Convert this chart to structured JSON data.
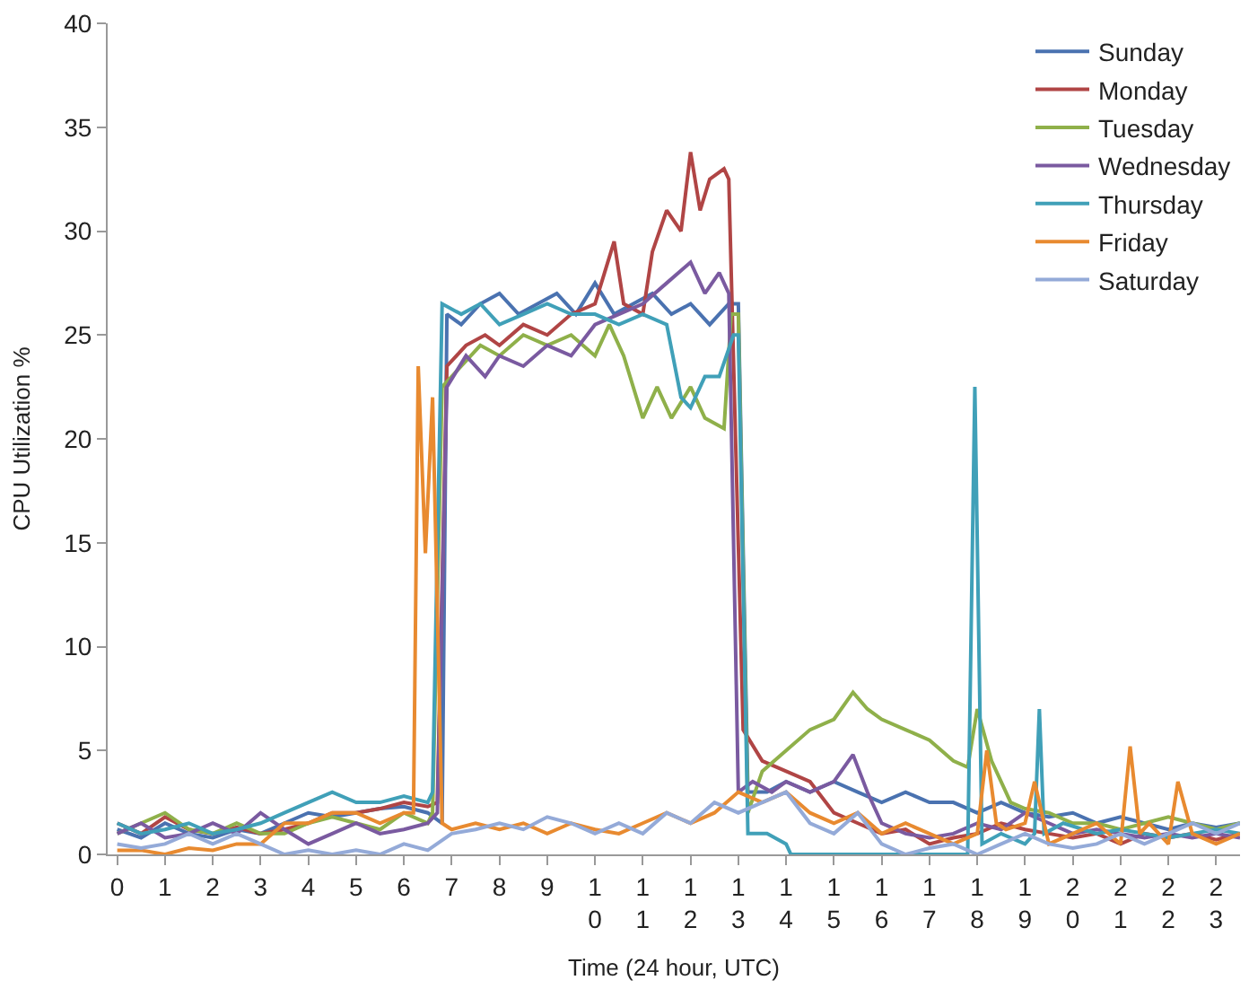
{
  "chart_data": {
    "type": "line",
    "xlabel": "Time (24 hour, UTC)",
    "ylabel": "CPU Utilization %",
    "xlim": [
      -0.2,
      23.5
    ],
    "ylim": [
      0,
      40
    ],
    "xticks": [
      0,
      1,
      2,
      3,
      4,
      5,
      6,
      7,
      8,
      9,
      10,
      11,
      12,
      13,
      14,
      15,
      16,
      17,
      18,
      19,
      20,
      21,
      22,
      23
    ],
    "yticks": [
      0,
      5,
      10,
      15,
      20,
      25,
      30,
      35,
      40
    ],
    "legend": "top right",
    "marker": "none",
    "line_style": "solid",
    "series": [
      {
        "name": "Sunday",
        "color": "#4a72b0",
        "x": [
          0,
          0.5,
          1,
          1.5,
          2,
          2.5,
          3,
          3.5,
          4,
          4.5,
          5,
          5.5,
          6,
          6.5,
          6.8,
          6.9,
          7.2,
          7.6,
          8,
          8.4,
          8.8,
          9.2,
          9.6,
          10,
          10.4,
          10.8,
          11.2,
          11.6,
          12,
          12.4,
          12.8,
          13.0,
          13.2,
          13.6,
          14,
          14.5,
          15,
          15.5,
          16,
          16.5,
          17,
          17.5,
          18,
          18.5,
          19,
          19.5,
          20,
          20.5,
          21,
          21.5,
          22,
          22.5,
          23,
          23.5
        ],
        "values": [
          1.2,
          0.8,
          1.5,
          1,
          0.8,
          1.2,
          1,
          1.5,
          2,
          1.8,
          2,
          2.2,
          2.3,
          2,
          1.5,
          26,
          25.5,
          26.5,
          27,
          26,
          26.5,
          27,
          26,
          27.5,
          26,
          26.5,
          27,
          26,
          26.5,
          25.5,
          26.5,
          26.5,
          3,
          3,
          3.5,
          3,
          3.5,
          3,
          2.5,
          3,
          2.5,
          2.5,
          2,
          2.5,
          2,
          1.8,
          2,
          1.5,
          1.8,
          1.5,
          1.2,
          1.5,
          1.3,
          1.5
        ]
      },
      {
        "name": "Monday",
        "color": "#b04545",
        "x": [
          0,
          0.5,
          1,
          1.5,
          2,
          2.5,
          3,
          3.5,
          4,
          4.5,
          5,
          5.5,
          6,
          6.5,
          6.7,
          6.9,
          7.3,
          7.7,
          8,
          8.5,
          9,
          9.5,
          10,
          10.2,
          10.4,
          10.6,
          11,
          11.2,
          11.5,
          11.8,
          12,
          12.2,
          12.4,
          12.7,
          12.8,
          13.1,
          13.5,
          14,
          14.5,
          15,
          15.5,
          16,
          16.5,
          17,
          17.5,
          18,
          18.5,
          19,
          19.5,
          20,
          20.5,
          21,
          21.5,
          22,
          22.5,
          23,
          23.5
        ],
        "values": [
          1.5,
          1,
          1.8,
          1.2,
          1,
          1.3,
          1,
          1.2,
          1.5,
          2,
          2,
          2.2,
          2.5,
          2.3,
          2.5,
          23.5,
          24.5,
          25,
          24.5,
          25.5,
          25,
          26,
          26.5,
          28,
          29.5,
          26.5,
          26,
          29,
          31,
          30,
          33.8,
          31,
          32.5,
          33,
          32.5,
          6,
          4.5,
          4,
          3.5,
          2,
          1.5,
          1,
          1.2,
          0.5,
          0.8,
          1,
          1.5,
          1.2,
          1,
          0.8,
          1,
          0.5,
          1,
          0.8,
          1,
          0.7,
          1
        ]
      },
      {
        "name": "Tuesday",
        "color": "#8fb04a",
        "x": [
          0,
          0.5,
          1,
          1.5,
          2,
          2.5,
          3,
          3.5,
          4,
          4.5,
          5,
          5.5,
          6,
          6.5,
          6.6,
          6.8,
          7.2,
          7.6,
          8,
          8.5,
          9,
          9.5,
          10,
          10.3,
          10.6,
          11,
          11.3,
          11.6,
          12,
          12.3,
          12.7,
          12.85,
          13.0,
          13.2,
          13.5,
          14,
          14.5,
          15,
          15.4,
          15.7,
          16,
          16.5,
          17,
          17.5,
          17.8,
          18,
          18.3,
          18.7,
          19,
          19.5,
          20,
          20.5,
          21,
          21.5,
          22,
          22.5,
          23,
          23.5
        ],
        "values": [
          1,
          1.5,
          2,
          1.2,
          1,
          1.5,
          1,
          1,
          1.5,
          1.8,
          1.5,
          1.2,
          2,
          1.5,
          2,
          22.5,
          23.5,
          24.5,
          24,
          25,
          24.5,
          25,
          24,
          25.5,
          24,
          21,
          22.5,
          21,
          22.5,
          21,
          20.5,
          26,
          26,
          2,
          4,
          5,
          6,
          6.5,
          7.8,
          7,
          6.5,
          6,
          5.5,
          4.5,
          4.2,
          7,
          4.5,
          2.5,
          2.2,
          2,
          1.5,
          1.5,
          1.2,
          1.5,
          1.8,
          1.5,
          1.2,
          1.5
        ]
      },
      {
        "name": "Wednesday",
        "color": "#7a5aa0",
        "x": [
          0,
          0.5,
          1,
          1.5,
          2,
          2.5,
          3,
          3.5,
          4,
          4.5,
          5,
          5.5,
          6,
          6.5,
          6.7,
          6.9,
          7.3,
          7.7,
          8,
          8.5,
          9,
          9.5,
          10,
          10.5,
          11,
          11.5,
          12,
          12.3,
          12.6,
          12.8,
          13.0,
          13.3,
          13.7,
          14,
          14.5,
          15,
          15.4,
          15.7,
          16,
          16.5,
          17,
          17.5,
          18,
          18.5,
          19,
          19.5,
          20,
          20.5,
          21,
          21.5,
          22,
          22.5,
          23,
          23.5
        ],
        "values": [
          1,
          1.5,
          0.8,
          1,
          1.5,
          1,
          2,
          1.2,
          0.5,
          1,
          1.5,
          1,
          1.2,
          1.5,
          2,
          22.5,
          24,
          23,
          24,
          23.5,
          24.5,
          24,
          25.5,
          26,
          26.5,
          27.5,
          28.5,
          27,
          28,
          27,
          3,
          3.5,
          3,
          3.5,
          3,
          3.5,
          4.8,
          3,
          1.5,
          1,
          0.8,
          1,
          1.5,
          1.2,
          2,
          1.5,
          1,
          1.2,
          1,
          0.8,
          1,
          0.8,
          1,
          0.8
        ]
      },
      {
        "name": "Thursday",
        "color": "#40a0b8",
        "x": [
          0,
          0.5,
          1,
          1.5,
          2,
          2.5,
          3,
          3.5,
          4,
          4.5,
          5,
          5.5,
          6,
          6.5,
          6.6,
          6.8,
          7.2,
          7.6,
          8,
          8.5,
          9,
          9.5,
          10,
          10.5,
          11,
          11.5,
          11.8,
          12,
          12.3,
          12.6,
          12.9,
          13.0,
          13.2,
          13.6,
          14,
          14.1,
          15,
          16,
          17,
          17.8,
          17.95,
          18.1,
          18.5,
          19,
          19.2,
          19.3,
          19.4,
          19.8,
          20.5,
          21,
          21.5,
          22,
          22.5,
          23,
          23.5
        ],
        "values": [
          1.5,
          1,
          1.2,
          1.5,
          1,
          1.2,
          1.5,
          2,
          2.5,
          3,
          2.5,
          2.5,
          2.8,
          2.5,
          3,
          26.5,
          26,
          26.5,
          25.5,
          26,
          26.5,
          26,
          26,
          25.5,
          26,
          25.5,
          22,
          21.5,
          23,
          23,
          25,
          25,
          1,
          1,
          0.5,
          0,
          0,
          0,
          0,
          0,
          22.5,
          0.5,
          1,
          0.5,
          1,
          7,
          1,
          1.5,
          1,
          1.2,
          1,
          0.8,
          1,
          1.2,
          1
        ]
      },
      {
        "name": "Friday",
        "color": "#e88a30",
        "x": [
          0,
          0.5,
          1,
          1.5,
          2,
          2.5,
          3,
          3.5,
          4,
          4.5,
          5,
          5.5,
          6,
          6.2,
          6.3,
          6.45,
          6.6,
          6.8,
          7,
          7.5,
          8,
          8.5,
          9,
          9.5,
          10,
          10.5,
          11,
          11.5,
          12,
          12.5,
          13,
          13.5,
          14,
          14.5,
          15,
          15.5,
          16,
          16.5,
          17,
          17.5,
          18,
          18.2,
          18.4,
          18.6,
          19,
          19.2,
          19.5,
          20,
          20.5,
          21,
          21.2,
          21.4,
          21.6,
          22,
          22.2,
          22.5,
          23,
          23.5
        ],
        "values": [
          0.2,
          0.2,
          0,
          0.3,
          0.2,
          0.5,
          0.5,
          1.5,
          1.5,
          2,
          2,
          1.5,
          2,
          2,
          23.5,
          14.5,
          22,
          1.5,
          1.2,
          1.5,
          1.2,
          1.5,
          1,
          1.5,
          1.2,
          1,
          1.5,
          2,
          1.5,
          2,
          3,
          2.5,
          3,
          2,
          1.5,
          2,
          1,
          1.5,
          1,
          0.5,
          1,
          5,
          1.5,
          1.2,
          1.5,
          3.5,
          0.5,
          1,
          1.5,
          0.5,
          5.2,
          1,
          1.5,
          0.5,
          3.5,
          1,
          0.5,
          1
        ]
      },
      {
        "name": "Saturday",
        "color": "#94aad8",
        "x": [
          0,
          0.5,
          1,
          1.5,
          2,
          2.5,
          3,
          3.5,
          4,
          4.5,
          5,
          5.5,
          6,
          6.5,
          7,
          7.5,
          8,
          8.5,
          9,
          9.5,
          10,
          10.5,
          11,
          11.5,
          12,
          12.5,
          13,
          13.5,
          14,
          14.5,
          15,
          15.5,
          16,
          16.5,
          17,
          17.5,
          18,
          18.5,
          19,
          19.5,
          20,
          20.5,
          21,
          21.5,
          22,
          22.5,
          23,
          23.5
        ],
        "values": [
          0.5,
          0.3,
          0.5,
          1,
          0.5,
          1,
          0.5,
          0,
          0.2,
          0,
          0.2,
          0,
          0.5,
          0.2,
          1,
          1.2,
          1.5,
          1.2,
          1.8,
          1.5,
          1,
          1.5,
          1,
          2,
          1.5,
          2.5,
          2,
          2.5,
          3,
          1.5,
          1,
          2,
          0.5,
          0,
          0.3,
          0.5,
          0,
          0.5,
          1,
          0.5,
          0.3,
          0.5,
          1,
          0.5,
          1,
          1.5,
          1,
          1.5
        ]
      }
    ]
  }
}
